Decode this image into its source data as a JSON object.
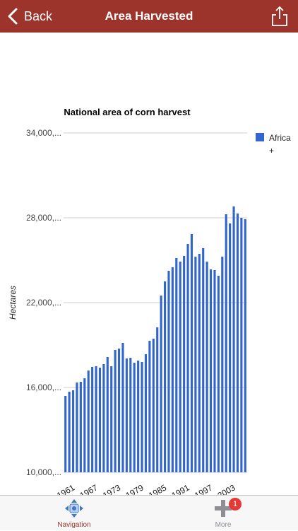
{
  "header": {
    "back_label": "Back",
    "title": "Area Harvested",
    "back_icon": "chevron-left-icon",
    "share_icon": "share-icon"
  },
  "tabbar": {
    "navigation_label": "Navigation",
    "navigation_icon": "navigation-arrows-icon",
    "more_label": "More",
    "more_icon": "plus-icon",
    "more_badge": "1"
  },
  "colors": {
    "navbar": "#9c342c",
    "bar": "#3366cc",
    "active_tab": "#9c342c"
  },
  "chart_data": {
    "type": "bar",
    "title": "National area of corn harvest",
    "ylabel": "Hectares",
    "xlabel": "",
    "ylim": [
      10000000,
      34000000
    ],
    "y_ticks": [
      10000000,
      16000000,
      22000000,
      28000000,
      34000000
    ],
    "y_tick_labels": [
      "10,000,...",
      "16,000,...",
      "22,000,...",
      "28,000,...",
      "34,000,..."
    ],
    "x_tick_labels": [
      "1961",
      "1967",
      "1973",
      "1979",
      "1985",
      "1991",
      "1997",
      "2003"
    ],
    "legend_position": "right",
    "grid": true,
    "categories": [
      "1961",
      "1962",
      "1963",
      "1964",
      "1965",
      "1966",
      "1967",
      "1968",
      "1969",
      "1970",
      "1971",
      "1972",
      "1973",
      "1974",
      "1975",
      "1976",
      "1977",
      "1978",
      "1979",
      "1980",
      "1981",
      "1982",
      "1983",
      "1984",
      "1985",
      "1986",
      "1987",
      "1988",
      "1989",
      "1990",
      "1991",
      "1992",
      "1993",
      "1994",
      "1995",
      "1996",
      "1997",
      "1998",
      "1999",
      "2000",
      "2001",
      "2002",
      "2003",
      "2004",
      "2005",
      "2006",
      "2007",
      "2008"
    ],
    "series": [
      {
        "name": "Africa +",
        "values": [
          15400000,
          15700000,
          15800000,
          16350000,
          16400000,
          16650000,
          17200000,
          17450000,
          17500000,
          17400000,
          17650000,
          18150000,
          17500000,
          18650000,
          18750000,
          19150000,
          18050000,
          18100000,
          17750000,
          17900000,
          17800000,
          18350000,
          19300000,
          19450000,
          20250000,
          22500000,
          23500000,
          24250000,
          24500000,
          25150000,
          24900000,
          25300000,
          26150000,
          26850000,
          25250000,
          25450000,
          25850000,
          24900000,
          24350000,
          24300000,
          23900000,
          25250000,
          28250000,
          27600000,
          28800000,
          28300000,
          28000000,
          27900000
        ]
      }
    ]
  }
}
